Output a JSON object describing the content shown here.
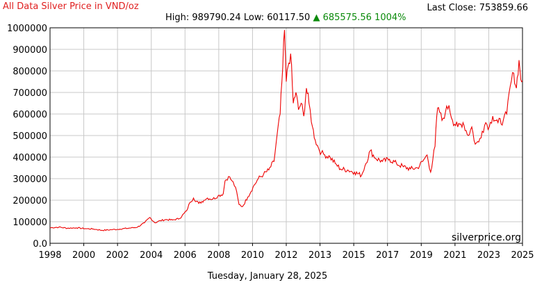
{
  "header": {
    "title": "All Data Silver Price in VND/oz",
    "last_close_label": "Last Close:",
    "last_close_value": "753859.66",
    "high_label": "High:",
    "high_value": "989790.24",
    "low_label": "Low:",
    "low_value": "60117.50",
    "change_arrow": "▲",
    "change_value": "685575.56",
    "change_percent": "1004%"
  },
  "footer": {
    "date": "Tuesday, January 28, 2025",
    "watermark": "silverprice.org"
  },
  "colors": {
    "line": "#ee0000",
    "grid": "#c8c8c8",
    "title": "#e02020",
    "up": "#0a8a0a"
  },
  "chart_data": {
    "type": "line",
    "title": "All Data Silver Price in VND/oz",
    "xlabel": "",
    "ylabel": "",
    "xlim": [
      1998,
      2025
    ],
    "ylim": [
      0,
      1000000
    ],
    "grid": true,
    "y_ticks": [
      "1000000",
      "900000",
      "800000",
      "700000",
      "600000",
      "500000",
      "400000",
      "300000",
      "200000",
      "100000",
      "0.0"
    ],
    "x_ticks": [
      "1998",
      "2000",
      "2002",
      "2004",
      "2006",
      "2008",
      "2010",
      "2012",
      "2013",
      "2015",
      "2017",
      "2019",
      "2021",
      "2023",
      "2025"
    ],
    "series": [
      {
        "x": [
          1998.0,
          1998.5,
          1999.0,
          1999.5,
          2000.0,
          2000.5,
          2001.0,
          2001.5,
          2002.0,
          2002.5,
          2003.0,
          2003.4,
          2003.7,
          2004.0,
          2004.3,
          2004.6,
          2005.0,
          2005.4,
          2005.8,
          2006.0,
          2006.2,
          2006.5,
          2006.8,
          2007.0,
          2007.3,
          2007.6,
          2007.9,
          2008.0,
          2008.2,
          2008.4,
          2008.6,
          2008.8,
          2009.0,
          2009.3,
          2009.6,
          2009.9,
          2010.2,
          2010.5,
          2010.8,
          2011.0,
          2011.15,
          2011.3,
          2011.4,
          2011.5,
          2011.6,
          2011.75,
          2011.9,
          2012.05,
          2012.2,
          2012.35,
          2012.5,
          2012.65,
          2012.8,
          2013.0,
          2013.15,
          2013.35,
          2013.5,
          2013.7,
          2014.0,
          2014.3,
          2014.6,
          2015.0,
          2015.4,
          2015.8,
          2016.0,
          2016.3,
          2016.6,
          2017.0,
          2017.4,
          2017.8,
          2018.2,
          2018.6,
          2019.0,
          2019.3,
          2019.55,
          2019.75,
          2020.0,
          2020.1,
          2020.2,
          2020.4,
          2020.6,
          2020.8,
          2021.0,
          2021.3,
          2021.6,
          2021.9,
          2022.1,
          2022.3,
          2022.5,
          2022.7,
          2022.9,
          2023.1,
          2023.3,
          2023.6,
          2023.9,
          2024.1,
          2024.3,
          2024.5,
          2024.65,
          2024.8,
          2024.9,
          2025.0
        ],
        "y": [
          72000,
          75000,
          70000,
          72000,
          68000,
          66000,
          60117.5,
          63000,
          66000,
          70000,
          75000,
          95000,
          120000,
          95000,
          105000,
          110000,
          108000,
          115000,
          150000,
          190000,
          210000,
          185000,
          200000,
          210000,
          205000,
          220000,
          230000,
          290000,
          310000,
          290000,
          260000,
          180000,
          170000,
          215000,
          260000,
          300000,
          320000,
          340000,
          380000,
          520000,
          600000,
          820000,
          989790.24,
          750000,
          820000,
          880000,
          650000,
          700000,
          620000,
          650000,
          590000,
          720000,
          650000,
          540000,
          480000,
          440000,
          420000,
          410000,
          400000,
          370000,
          345000,
          340000,
          330000,
          315000,
          360000,
          430000,
          395000,
          380000,
          390000,
          370000,
          355000,
          345000,
          350000,
          380000,
          410000,
          330000,
          450000,
          590000,
          630000,
          570000,
          610000,
          640000,
          570000,
          540000,
          560000,
          500000,
          540000,
          460000,
          470000,
          520000,
          560000,
          540000,
          590000,
          560000,
          570000,
          600000,
          730000,
          790000,
          720000,
          850000,
          760000,
          753859.66
        ]
      }
    ]
  }
}
